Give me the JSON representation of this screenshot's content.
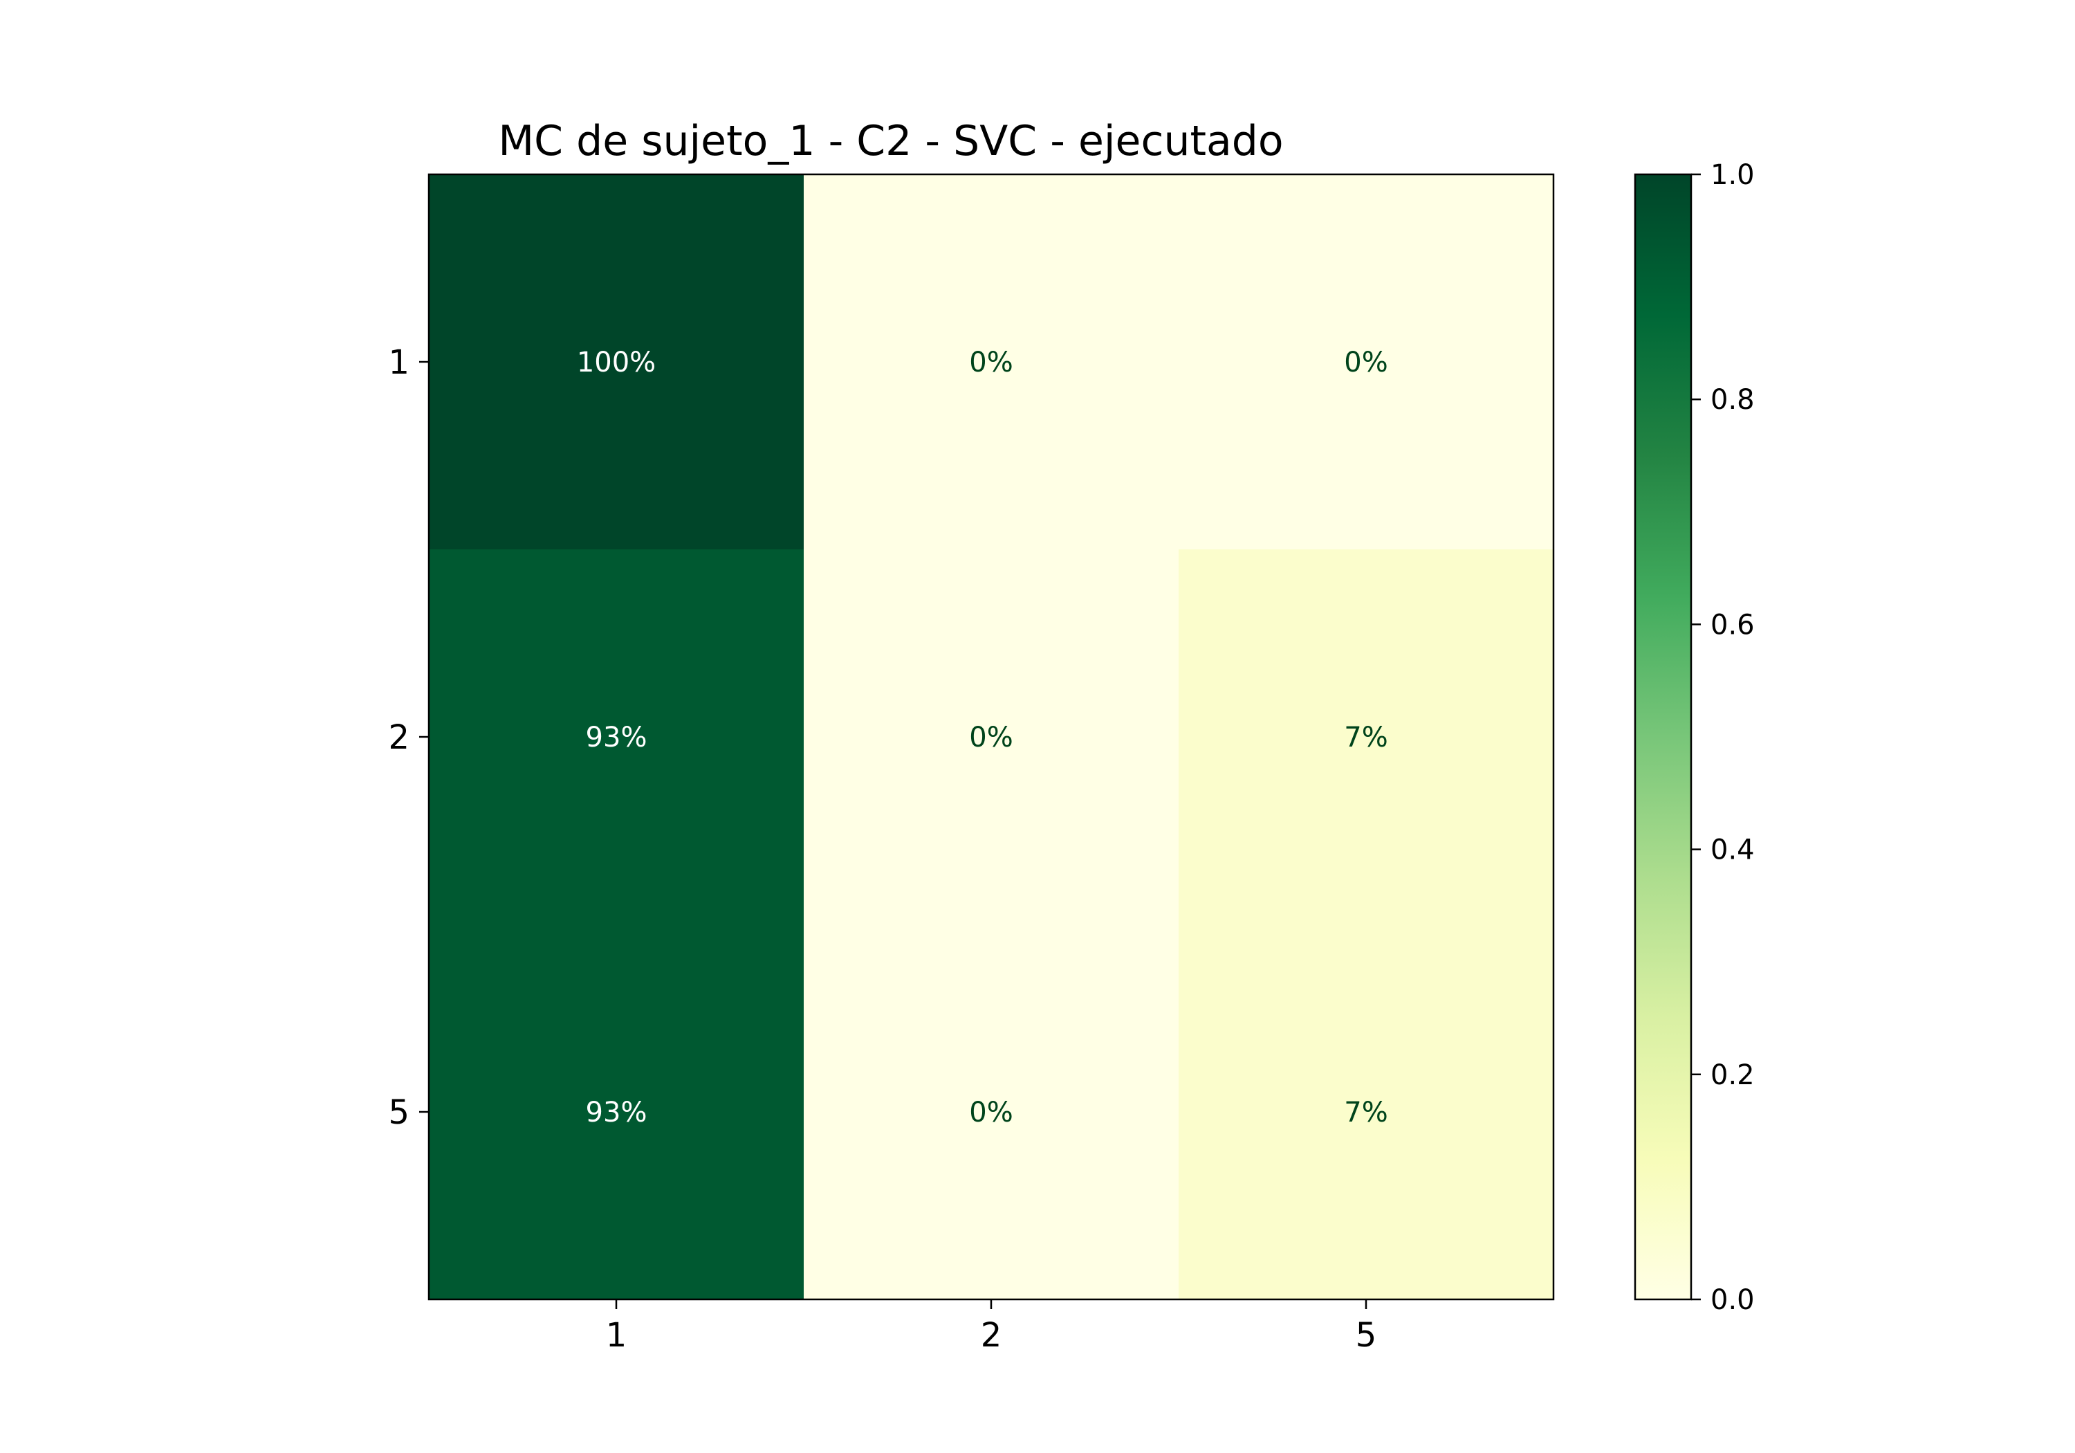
{
  "chart_data": {
    "type": "heatmap",
    "title": "MC de sujeto_1 - C2 - SVC - ejecutado",
    "x_categories": [
      "1",
      "2",
      "5"
    ],
    "y_categories": [
      "1",
      "2",
      "5"
    ],
    "values": [
      [
        1.0,
        0.0,
        0.0
      ],
      [
        0.93,
        0.0,
        0.07
      ],
      [
        0.93,
        0.0,
        0.07
      ]
    ],
    "cell_labels": [
      [
        "100%",
        "0%",
        "0%"
      ],
      [
        "93%",
        "0%",
        "7%"
      ],
      [
        "93%",
        "0%",
        "7%"
      ]
    ],
    "colormap": "YlGn",
    "colorbar": {
      "range": [
        0.0,
        1.0
      ],
      "ticks": [
        "0.0",
        "0.2",
        "0.4",
        "0.6",
        "0.8",
        "1.0"
      ]
    },
    "colors": {
      "dark_text": "#00441b",
      "light_text": "#ffffff"
    }
  }
}
